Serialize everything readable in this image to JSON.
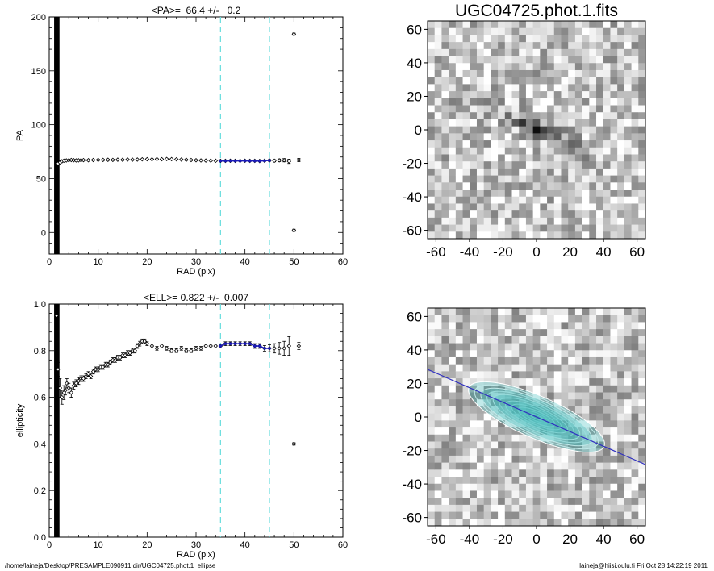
{
  "footer": {
    "left": "/home/laineja/Desktop/PRESAMPLE090911.dir/UGC04725.phot.1_ellipse",
    "right": "laineja@hiisi.oulu.fi  Fri Oct 28 14:22:19 2011"
  },
  "image_title": "UGC04725.phot.1.fits",
  "colors": {
    "fit_line": "#1a1ab8",
    "range_markers": "#66dddd",
    "contour": "#ffffff",
    "contour_fill": "#4fc4c4",
    "major_axis": "#3030c0"
  },
  "chart_data": [
    {
      "type": "scatter",
      "title": "<PA>=  66.4 +/-   0.2",
      "xlabel": "RAD (pix)",
      "ylabel": "PA",
      "xlim": [
        0,
        60
      ],
      "ylim": [
        -20,
        200
      ],
      "xticks": [
        0,
        10,
        20,
        30,
        40,
        50,
        60
      ],
      "yticks": [
        0,
        50,
        100,
        150,
        200
      ],
      "ytick_labels": [
        "0",
        "50",
        "100",
        "150",
        "200"
      ],
      "mean": 66.4,
      "fit_range": [
        35,
        45
      ],
      "series": [
        {
          "x": [
            1.8,
            2.2,
            2.6,
            3.0,
            3.5,
            4.0,
            4.5,
            5,
            5.5,
            6,
            6.5,
            7,
            8,
            9,
            10,
            11,
            12,
            13,
            14,
            15,
            16,
            17,
            18,
            19,
            20,
            21,
            22,
            23,
            24,
            25,
            26,
            27,
            28,
            29,
            30,
            31,
            32,
            33,
            34,
            35,
            36,
            37,
            38,
            39,
            40,
            41,
            42,
            43,
            44,
            45,
            46,
            47,
            48,
            49,
            51
          ],
          "y": [
            64,
            65,
            66,
            66.5,
            66.8,
            67,
            67.2,
            67,
            66.8,
            66.9,
            67,
            67.1,
            67,
            67.2,
            67.3,
            67.3,
            67.4,
            67.3,
            67.5,
            67.4,
            67.6,
            67.5,
            67.6,
            67.8,
            67.9,
            67.8,
            68,
            67.9,
            68.1,
            68,
            67.8,
            67.6,
            67.4,
            67.2,
            67,
            66.8,
            66.7,
            66.6,
            66.5,
            66.4,
            66.4,
            66.5,
            66.4,
            66.4,
            66.5,
            66.4,
            66.4,
            66.3,
            66.5,
            66.8,
            66.5,
            66.9,
            67,
            66,
            67.2
          ],
          "yerr": [
            0.5,
            0.5,
            0.5,
            0.5,
            0.5,
            0.5,
            0.5,
            0.5,
            0.5,
            0.5,
            0.5,
            0.5,
            0.5,
            0.5,
            0.5,
            0.5,
            0.5,
            0.5,
            0.5,
            0.5,
            0.5,
            0.5,
            0.5,
            0.5,
            0.5,
            0.5,
            0.5,
            0.5,
            0.5,
            0.5,
            0.5,
            0.5,
            0.5,
            0.5,
            0.5,
            0.5,
            0.5,
            0.5,
            0.5,
            0.5,
            0.5,
            0.5,
            0.5,
            0.5,
            0.5,
            0.5,
            0.5,
            0.5,
            0.5,
            0.8,
            1,
            1.2,
            1.5,
            2,
            1.5
          ]
        },
        {
          "x": [
            50,
            50
          ],
          "y": [
            184,
            2
          ],
          "yerr": [
            1,
            1
          ]
        }
      ]
    },
    {
      "type": "scatter",
      "title": "<ELL>= 0.822 +/-  0.007",
      "xlabel": "RAD (pix)",
      "ylabel": "ellipticity",
      "xlim": [
        0,
        60
      ],
      "ylim": [
        0,
        1
      ],
      "xticks": [
        0,
        10,
        20,
        30,
        40,
        50,
        60
      ],
      "yticks": [
        0,
        0.2,
        0.4,
        0.6,
        0.8,
        1.0
      ],
      "ytick_labels": [
        "0.0",
        "0.2",
        "0.4",
        "0.6",
        "0.8",
        "1.0"
      ],
      "mean": 0.822,
      "fit_range": [
        35,
        45
      ],
      "series": [
        {
          "x": [
            1.5,
            1.8,
            2.2,
            2.6,
            3.0,
            3.3,
            3.6,
            4.0,
            4.5,
            5,
            5.5,
            6,
            6.5,
            7,
            7.5,
            8,
            8.5,
            9,
            9.5,
            10,
            10.5,
            11,
            11.5,
            12,
            12.5,
            13,
            13.5,
            14,
            14.5,
            15,
            15.5,
            16,
            16.5,
            17,
            17.5,
            18,
            18.5,
            19,
            19.5,
            20,
            21,
            22,
            23,
            24,
            25,
            26,
            27,
            28,
            29,
            30,
            31,
            32,
            33,
            34,
            35,
            36,
            37,
            38,
            39,
            40,
            41,
            42,
            43,
            44,
            45,
            46,
            47,
            48,
            49,
            51
          ],
          "y": [
            0.95,
            0.72,
            0.64,
            0.6,
            0.62,
            0.63,
            0.66,
            0.64,
            0.62,
            0.65,
            0.66,
            0.67,
            0.68,
            0.68,
            0.69,
            0.7,
            0.69,
            0.71,
            0.72,
            0.72,
            0.73,
            0.73,
            0.74,
            0.74,
            0.75,
            0.76,
            0.76,
            0.77,
            0.77,
            0.78,
            0.78,
            0.79,
            0.79,
            0.8,
            0.8,
            0.82,
            0.83,
            0.84,
            0.84,
            0.83,
            0.82,
            0.81,
            0.82,
            0.81,
            0.8,
            0.8,
            0.81,
            0.8,
            0.8,
            0.81,
            0.81,
            0.82,
            0.82,
            0.82,
            0.82,
            0.83,
            0.83,
            0.83,
            0.83,
            0.83,
            0.83,
            0.82,
            0.82,
            0.81,
            0.81,
            0.81,
            0.81,
            0.81,
            0.82,
            0.82
          ],
          "yerr": [
            0.01,
            0.03,
            0.04,
            0.03,
            0.03,
            0.02,
            0.02,
            0.02,
            0.02,
            0.015,
            0.015,
            0.015,
            0.012,
            0.012,
            0.01,
            0.01,
            0.01,
            0.01,
            0.01,
            0.01,
            0.01,
            0.01,
            0.01,
            0.01,
            0.01,
            0.01,
            0.01,
            0.01,
            0.01,
            0.01,
            0.01,
            0.01,
            0.01,
            0.01,
            0.01,
            0.01,
            0.01,
            0.01,
            0.01,
            0.008,
            0.008,
            0.008,
            0.008,
            0.008,
            0.008,
            0.008,
            0.008,
            0.008,
            0.008,
            0.008,
            0.008,
            0.008,
            0.008,
            0.008,
            0.008,
            0.008,
            0.008,
            0.008,
            0.008,
            0.008,
            0.008,
            0.01,
            0.01,
            0.012,
            0.015,
            0.02,
            0.025,
            0.03,
            0.04,
            0.015
          ]
        },
        {
          "x": [
            50
          ],
          "y": [
            0.4
          ],
          "yerr": [
            0.005
          ]
        }
      ]
    },
    {
      "type": "heatmap",
      "title": "UGC04725.phot.1.fits",
      "xlim": [
        -65,
        65
      ],
      "ylim": [
        -65,
        65
      ],
      "xticks": [
        -60,
        -40,
        -20,
        0,
        20,
        40,
        60
      ],
      "yticks": [
        -60,
        -40,
        -20,
        0,
        20,
        40,
        60
      ],
      "position_angle": 66.4,
      "ellipticity": 0.822
    },
    {
      "type": "heatmap",
      "title": "",
      "xlim": [
        -65,
        65
      ],
      "ylim": [
        -65,
        65
      ],
      "xticks": [
        -60,
        -40,
        -20,
        0,
        20,
        40,
        60
      ],
      "yticks": [
        -60,
        -40,
        -20,
        0,
        20,
        40,
        60
      ],
      "position_angle": 66.4,
      "ellipticity": 0.822,
      "contour_semimajor": [
        4,
        8,
        12,
        16,
        20,
        24,
        28,
        32,
        36,
        40,
        44
      ]
    }
  ]
}
